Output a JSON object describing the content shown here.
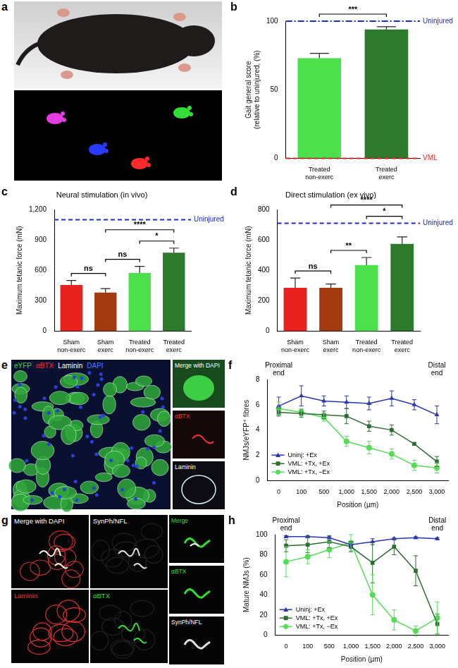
{
  "chart_data": [
    {
      "type": "bar",
      "panel": "b",
      "categories": [
        "Treated non-exerc",
        "Treated exerc"
      ],
      "values": [
        73,
        94
      ],
      "errors": [
        3.5,
        2
      ],
      "colors": [
        "#4ce04c",
        "#2d7a2d"
      ],
      "y_label": [
        "Gait general score",
        "(relative to uninjured, (%)"
      ],
      "ylim": [
        0,
        100
      ],
      "yticks": [
        0,
        50,
        100
      ],
      "grid": false,
      "reference_lines": [
        {
          "label": "Uninjured",
          "value": 100,
          "color": "#1a2ccf",
          "line_style": "dashdot"
        },
        {
          "label": "VML",
          "value": 0,
          "color": "#e8231f",
          "line_style": "dashed"
        }
      ],
      "comparisons": [
        {
          "between": [
            "Treated non-exerc",
            "Treated exerc"
          ],
          "label": "***"
        }
      ]
    },
    {
      "type": "bar",
      "panel": "c",
      "title": "Neural stimulation (in vivo)",
      "categories": [
        "Sham non-exerc",
        "Sham exerc",
        "Treated non-exerc",
        "Treated exerc"
      ],
      "values": [
        455,
        380,
        575,
        775
      ],
      "errors": [
        45,
        40,
        65,
        45
      ],
      "colors": [
        "#e8231f",
        "#a33a10",
        "#4ce04c",
        "#2d7a2d"
      ],
      "y_label": "Maximum tetanic force (mN)",
      "ylim": [
        0,
        1200
      ],
      "yticks": [
        0,
        300,
        600,
        900,
        1200
      ],
      "grid": false,
      "reference_lines": [
        {
          "label": "Uninjured",
          "value": 1100,
          "color": "#1a2ccf",
          "line_style": "dashed"
        }
      ],
      "comparisons": [
        {
          "between": [
            "Sham non-exerc",
            "Sham exerc"
          ],
          "label": "ns"
        },
        {
          "between": [
            "Sham exerc",
            "Treated non-exerc"
          ],
          "label": "ns"
        },
        {
          "between": [
            "Sham exerc",
            "Treated exerc"
          ],
          "label": "****"
        },
        {
          "between": [
            "Treated non-exerc",
            "Treated exerc"
          ],
          "label": "*"
        }
      ]
    },
    {
      "type": "bar",
      "panel": "d",
      "title": "Direct stimulation (ex vivo)",
      "categories": [
        "Sham non-exerc",
        "Sham exerc",
        "Treated non-exerc",
        "Treated exerc"
      ],
      "values": [
        285,
        285,
        435,
        575
      ],
      "errors": [
        65,
        25,
        50,
        45
      ],
      "colors": [
        "#e8231f",
        "#a33a10",
        "#4ce04c",
        "#2d7a2d"
      ],
      "y_label": "Maximum tetanic force (mN)",
      "ylim": [
        0,
        800
      ],
      "yticks": [
        0,
        200,
        400,
        600,
        800
      ],
      "grid": false,
      "reference_lines": [
        {
          "label": "Uninjured",
          "value": 710,
          "color": "#1a2ccf",
          "line_style": "dashed"
        }
      ],
      "comparisons": [
        {
          "between": [
            "Sham non-exerc",
            "Sham exerc"
          ],
          "label": "ns"
        },
        {
          "between": [
            "Sham exerc",
            "Treated non-exerc"
          ],
          "label": "**"
        },
        {
          "between": [
            "Sham exerc",
            "Treated exerc"
          ],
          "label": "****"
        },
        {
          "between": [
            "Treated non-exerc",
            "Treated exerc"
          ],
          "label": "*"
        }
      ]
    },
    {
      "type": "line",
      "panel": "f",
      "categories": [
        "0",
        "100",
        "500",
        "1,000",
        "1,500",
        "2,000",
        "2,500",
        "3,000"
      ],
      "x_label": "Position (µm)",
      "y_label": "NMJs/eYFP⁺ fibres",
      "ylim": [
        0,
        8
      ],
      "yticks": [
        0,
        2,
        4,
        6,
        8
      ],
      "grid": false,
      "legend": "lower left",
      "annotations": [
        {
          "text": "Proximal end",
          "at": "0"
        },
        {
          "text": "Distal end",
          "at": "3,000"
        }
      ],
      "series": [
        {
          "name": "Uninj: +Ex",
          "color": "#2a35b5",
          "marker": "triangle",
          "line_style": "solid",
          "values": [
            5.9,
            6.7,
            6.3,
            6.2,
            6.1,
            6.5,
            6.0,
            5.2
          ],
          "errors": [
            0.7,
            0.8,
            0.4,
            0.5,
            0.5,
            0.6,
            0.4,
            0.7
          ]
        },
        {
          "name": "VML: +Tx, +Ex",
          "color": "#2d6e32",
          "marker": "square",
          "line_style": "solid",
          "values": [
            5.4,
            5.3,
            5.2,
            5.1,
            4.3,
            4.0,
            2.9,
            1.5
          ],
          "errors": [
            0.3,
            0.3,
            0.3,
            0.6,
            0.4,
            0.4,
            0.1,
            0.4
          ]
        },
        {
          "name": "VML: +Tx, −Ex",
          "color": "#55dd55",
          "marker": "circle",
          "line_style": "solid",
          "values": [
            5.7,
            5.4,
            5.0,
            3.1,
            2.6,
            2.1,
            1.2,
            1.0
          ],
          "errors": [
            0.5,
            0.3,
            0.3,
            0.4,
            0.5,
            0.4,
            0.4,
            0.4
          ]
        }
      ]
    },
    {
      "type": "line",
      "panel": "h",
      "categories": [
        "0",
        "100",
        "500",
        "1,000",
        "1,500",
        "2,000",
        "2,500",
        "3,000"
      ],
      "x_label": "Position (µm)",
      "y_label": "Mature NMJs (%)",
      "ylim": [
        0,
        100
      ],
      "yticks": [
        0,
        20,
        40,
        60,
        80,
        100
      ],
      "grid": false,
      "legend": "lower left",
      "annotations": [
        {
          "text": "Proximal end",
          "at": "0"
        },
        {
          "text": "Distal end",
          "at": "3,000"
        }
      ],
      "series": [
        {
          "name": "Uninj: +Ex",
          "color": "#2a35b5",
          "marker": "triangle",
          "line_style": "solid",
          "values": [
            98,
            98,
            97,
            90,
            93,
            96,
            97,
            96
          ],
          "errors": [
            1,
            1,
            1,
            3,
            3,
            1,
            1,
            1
          ]
        },
        {
          "name": "VML: +Tx, +Ex",
          "color": "#2d6e32",
          "marker": "square",
          "line_style": "solid",
          "values": [
            89,
            90,
            93,
            88,
            72,
            88,
            64,
            11
          ],
          "errors": [
            6,
            8,
            6,
            5,
            20,
            8,
            15,
            10
          ]
        },
        {
          "name": "VML: +Tx, −Ex",
          "color": "#55dd55",
          "marker": "circle",
          "line_style": "solid",
          "values": [
            73,
            78,
            85,
            92,
            40,
            15,
            4,
            17
          ],
          "errors": [
            15,
            7,
            8,
            8,
            20,
            10,
            5,
            16
          ]
        }
      ]
    }
  ],
  "images": [
    {
      "panel": "a"
    },
    {
      "panel": "e",
      "main_labels": [
        {
          "text": "eYFP",
          "color": "#33dd33"
        },
        {
          "text": "αBTX",
          "color": "#ff3030"
        },
        {
          "text": "Laminin",
          "color": "#ffffff"
        },
        {
          "text": "DAPI",
          "color": "#5577ff"
        }
      ],
      "inset_labels": [
        {
          "text": "Merge with DAPI",
          "color": "#ffffff"
        },
        {
          "text": "αBTX",
          "color": "#ff3030"
        },
        {
          "text": "Laminin",
          "color": "#ffffff"
        }
      ]
    },
    {
      "panel": "g",
      "main_labels": [
        {
          "text": "Merge with DAPI",
          "color": "#ffffff"
        },
        {
          "text": "SynPh/NFL",
          "color": "#ffffff"
        },
        {
          "text": "Laminin",
          "color": "#ff3030"
        },
        {
          "text": "αBTX",
          "color": "#33dd33"
        }
      ],
      "inset_labels": [
        {
          "text": "Merge",
          "color": "#33dd33"
        },
        {
          "text": "αBTX",
          "color": "#33dd33"
        },
        {
          "text": "SynPh/NFL",
          "color": "#ffffff"
        }
      ]
    }
  ]
}
